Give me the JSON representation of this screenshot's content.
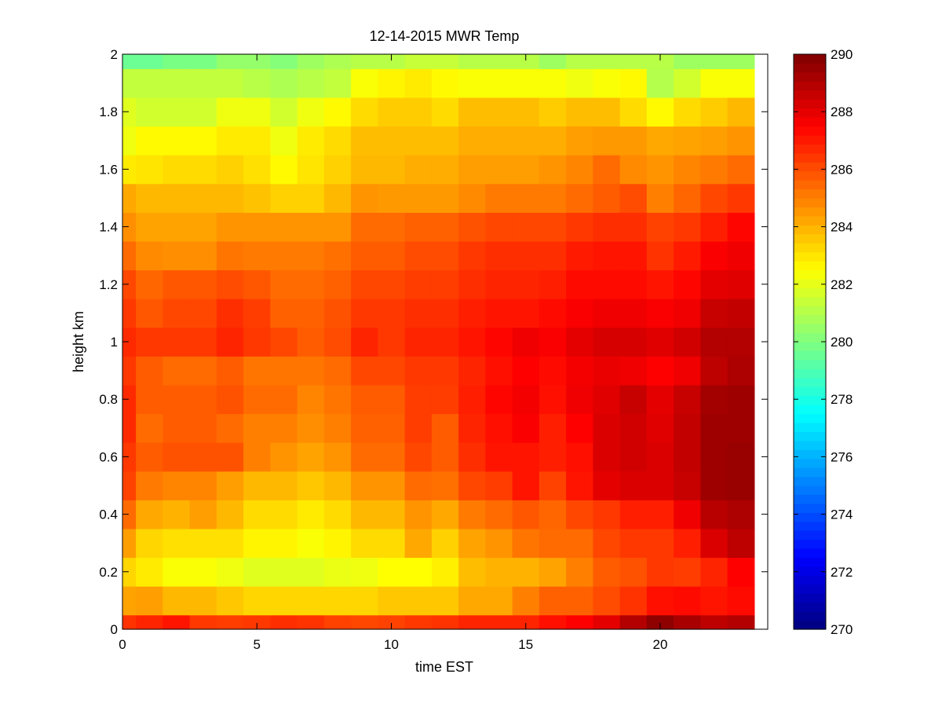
{
  "chart_data": {
    "type": "heatmap",
    "title": "12-14-2015 MWR Temp",
    "xlabel": "time EST",
    "ylabel": "height km",
    "xlim": [
      0,
      24
    ],
    "ylim": [
      0,
      2
    ],
    "xticks": [
      0,
      5,
      10,
      15,
      20
    ],
    "yticks": [
      0,
      0.2,
      0.4,
      0.6,
      0.8,
      1,
      1.2,
      1.4,
      1.6,
      1.8,
      2
    ],
    "x_edges": [
      0,
      0.5,
      1.5,
      2.5,
      3.5,
      4.5,
      5.5,
      6.5,
      7.5,
      8.5,
      9.5,
      10.5,
      11.5,
      12.5,
      13.5,
      14.5,
      15.5,
      16.5,
      17.5,
      18.5,
      19.5,
      20.5,
      21.5,
      22.5,
      23.5
    ],
    "y_edges": [
      0,
      0.05,
      0.15,
      0.25,
      0.35,
      0.45,
      0.55,
      0.65,
      0.75,
      0.85,
      0.95,
      1.05,
      1.15,
      1.25,
      1.35,
      1.45,
      1.55,
      1.65,
      1.75,
      1.85,
      1.95,
      2.0
    ],
    "colorbar": {
      "colormap": "jet",
      "clim": [
        270,
        290
      ],
      "ticks": [
        270,
        272,
        274,
        276,
        278,
        280,
        282,
        284,
        286,
        288,
        290
      ]
    },
    "z_rows_from_bottom": [
      [
        286.5,
        286.8,
        287.1,
        286.4,
        286.3,
        286.4,
        286.6,
        286.5,
        286.2,
        286.1,
        286.2,
        286.4,
        286.5,
        286.8,
        286.8,
        286.8,
        287.2,
        287.5,
        288,
        289,
        289.7,
        289.2,
        288.8,
        289
      ],
      [
        284.3,
        284.4,
        283.9,
        283.9,
        283.6,
        283.3,
        283.3,
        283.3,
        283.3,
        283.3,
        283.6,
        283.6,
        283.6,
        284.2,
        284.2,
        285,
        285.6,
        285.6,
        286,
        286.5,
        287.2,
        287.3,
        287.1,
        287.3
      ],
      [
        283.3,
        282.9,
        282.4,
        282.4,
        282.2,
        281.9,
        281.9,
        281.9,
        282.1,
        282.2,
        282.5,
        282.5,
        282.8,
        283.8,
        284,
        284,
        284.3,
        285,
        285.7,
        285.9,
        286.4,
        286.3,
        286.8,
        287.5
      ],
      [
        284.4,
        283.3,
        283.1,
        283.1,
        283.1,
        282.7,
        282.7,
        282.4,
        282.7,
        283.2,
        283.2,
        284.2,
        283.4,
        284.3,
        284.6,
        285.2,
        285.4,
        285.4,
        286.1,
        286.4,
        286.4,
        286.9,
        288.2,
        288.8
      ],
      [
        285.4,
        284.2,
        284,
        284.4,
        283.9,
        283.2,
        283.2,
        282.9,
        283.2,
        283.9,
        283.9,
        284.6,
        284.2,
        285.1,
        285.4,
        285.8,
        285.5,
        286.1,
        286.4,
        286.9,
        286.9,
        287.8,
        288.9,
        289.1
      ],
      [
        286.2,
        285.1,
        284.9,
        284.9,
        284.4,
        283.9,
        283.9,
        283.6,
        283.9,
        284.6,
        284.6,
        285.4,
        285.3,
        286.1,
        286.3,
        287.1,
        286.2,
        287.1,
        288,
        288.2,
        288.2,
        288.6,
        289.4,
        289.5
      ],
      [
        286.4,
        285.7,
        285.9,
        285.9,
        285.9,
        285,
        284.6,
        284.3,
        284.6,
        285.4,
        285.4,
        286.1,
        285.7,
        286.6,
        287.1,
        287.1,
        286.9,
        287.2,
        288.2,
        288.4,
        288.2,
        288.7,
        289.4,
        289.5
      ],
      [
        286.7,
        285.4,
        285.7,
        285.7,
        285.4,
        285,
        285,
        284.7,
        285,
        285.6,
        285.6,
        286.3,
        285.7,
        286.8,
        287.2,
        287.6,
        286.9,
        287.5,
        288.2,
        288.4,
        288.1,
        288.7,
        289.4,
        289.4
      ],
      [
        286.7,
        285.7,
        285.7,
        285.7,
        285.9,
        285.4,
        285.4,
        284.9,
        285.2,
        285.7,
        285.7,
        286.3,
        286.3,
        286.9,
        287.4,
        287.7,
        287.2,
        287.8,
        288.1,
        288.6,
        288,
        288.6,
        289.3,
        289.4
      ],
      [
        286.4,
        285.7,
        285.4,
        285.4,
        285.7,
        285.2,
        285.2,
        285.2,
        285.4,
        286.1,
        286.1,
        286.4,
        286.4,
        286.8,
        287.2,
        287.5,
        287.3,
        287.7,
        287.9,
        287.8,
        287.5,
        287.8,
        288.8,
        289.1
      ],
      [
        286.7,
        286.4,
        286.4,
        286.4,
        286.8,
        286.4,
        286.1,
        285.7,
        286,
        286.8,
        286.4,
        286.8,
        286.8,
        287.1,
        287.4,
        287.8,
        287.6,
        288,
        288.3,
        288.3,
        288.1,
        288.4,
        289,
        289
      ],
      [
        286.4,
        285.8,
        286.1,
        286.1,
        286.6,
        286.3,
        285.6,
        285.6,
        285.9,
        286.4,
        286.4,
        286.6,
        286.6,
        286.9,
        287.1,
        287.1,
        287.3,
        287.6,
        287.8,
        287.8,
        287.6,
        287.8,
        288.6,
        288.7
      ],
      [
        286.1,
        285.5,
        285.8,
        285.8,
        286,
        285.8,
        285.4,
        285.4,
        285.6,
        286.1,
        286.1,
        286.3,
        286.3,
        286.6,
        286.8,
        286.8,
        286.9,
        287.3,
        287.3,
        287.3,
        287.1,
        287.4,
        288,
        288.1
      ],
      [
        285.4,
        284.8,
        284.7,
        284.7,
        285.2,
        285.1,
        285.1,
        285.1,
        285.3,
        285.7,
        285.7,
        286,
        286,
        286.4,
        286.6,
        286.6,
        286.6,
        287,
        287.1,
        287.1,
        286.5,
        287,
        287.6,
        287.8
      ],
      [
        284.7,
        284.3,
        284.3,
        284.3,
        284.6,
        284.6,
        284.6,
        284.6,
        284.6,
        285.4,
        285.4,
        285.6,
        285.6,
        285.9,
        286.1,
        286.1,
        286.1,
        286.4,
        286.6,
        286.6,
        286.2,
        286.4,
        286.9,
        287.4
      ],
      [
        284.2,
        283.9,
        283.9,
        283.9,
        283.9,
        283.7,
        283.4,
        283.4,
        283.9,
        284.6,
        284.5,
        284.5,
        284.5,
        284.8,
        285.1,
        285.1,
        285.1,
        285.4,
        285.7,
        286,
        285,
        285.5,
        286.1,
        286.4
      ],
      [
        282.9,
        283,
        283.2,
        283.2,
        283.4,
        283.1,
        282.6,
        283,
        283.4,
        283.9,
        283.9,
        284.1,
        284.1,
        284.4,
        284.4,
        284.4,
        284.6,
        284.9,
        285.4,
        284.8,
        284.6,
        284.9,
        285.1,
        285.4
      ],
      [
        282.2,
        282.6,
        282.6,
        282.6,
        282.9,
        282.9,
        282.2,
        282.9,
        283.2,
        283.8,
        283.8,
        283.8,
        283.8,
        284.1,
        284.1,
        284.1,
        284.1,
        284.4,
        284.5,
        284.5,
        284.2,
        284.3,
        284.4,
        284.6
      ],
      [
        281.9,
        281.6,
        281.6,
        281.6,
        282.2,
        282.2,
        281.6,
        282.2,
        282.6,
        283.2,
        283.5,
        283.5,
        283.2,
        283.8,
        283.8,
        283.8,
        283.5,
        283.8,
        283.8,
        283.2,
        282.6,
        283.2,
        283.5,
        283.9
      ],
      [
        281.3,
        281.3,
        281.3,
        281.3,
        281.3,
        281.1,
        280.9,
        281.1,
        281.3,
        282.4,
        282.7,
        282.9,
        282.6,
        282.4,
        282.4,
        282.4,
        282.4,
        282.2,
        282.4,
        282.6,
        281,
        281.6,
        282.4,
        282.4
      ],
      [
        279.6,
        279.6,
        279.9,
        279.9,
        280.4,
        280.4,
        280.1,
        280.6,
        280.9,
        281.1,
        281.1,
        281.4,
        281.4,
        281.1,
        281.1,
        281.1,
        280.6,
        281.1,
        281.1,
        281.1,
        281.1,
        280.6,
        280.6,
        280.6
      ]
    ]
  }
}
